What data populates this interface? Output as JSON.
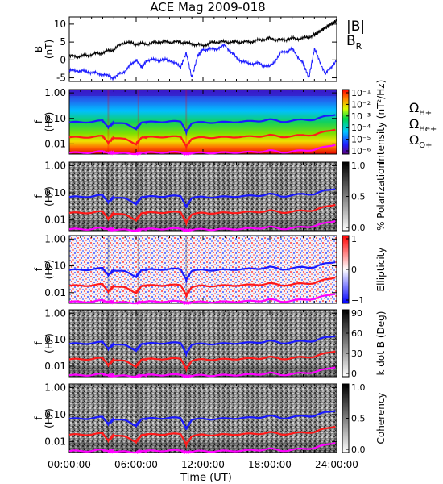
{
  "title": "ACE Mag 2009-018",
  "xaxis": {
    "label": "Time (UT)",
    "ticks": [
      "00:00:00",
      "06:00:00",
      "12:00:00",
      "18:00:00",
      "24:00:00"
    ],
    "range_hours": [
      0,
      24
    ]
  },
  "colors": {
    "B_total": "#000000",
    "B_R": "#1a1aff",
    "omega_H": "#1a1aff",
    "omega_He": "#ff1a1a",
    "omega_O": "#ff00ff"
  },
  "chart_data": [
    {
      "type": "line",
      "ylabel": "B (nT)",
      "ylim": [
        -6,
        12
      ],
      "yticks": [
        -5,
        0,
        5,
        10
      ],
      "legend": [
        {
          "text": "|B|",
          "color": "#000000"
        },
        {
          "text": "B",
          "sub": "R",
          "color": "#1a1aff"
        }
      ],
      "series": [
        {
          "name": "|B|",
          "x": [
            0,
            1,
            2,
            3,
            4,
            5,
            6,
            7,
            8,
            9,
            10,
            11,
            12,
            13,
            14,
            15,
            16,
            17,
            18,
            19,
            20,
            21,
            22,
            22.5,
            23,
            23.5,
            24
          ],
          "y": [
            1,
            1,
            1.5,
            2,
            3,
            5,
            4.5,
            4.5,
            5,
            5,
            5,
            4.5,
            4,
            5,
            5,
            5,
            5,
            5.5,
            6,
            5.5,
            6,
            6,
            7,
            8,
            9,
            10,
            11
          ]
        },
        {
          "name": "B_R",
          "x": [
            0,
            1,
            2,
            3,
            4,
            5,
            6,
            6.5,
            7,
            8,
            9,
            10,
            10.5,
            11,
            11.5,
            12,
            13,
            14,
            15,
            16,
            17,
            18,
            19,
            20,
            21,
            21.5,
            22,
            23,
            24
          ],
          "y": [
            -3,
            -3,
            -3.5,
            -4,
            -5,
            -3,
            0,
            -2,
            0,
            0,
            0,
            -2,
            2,
            -5,
            1,
            3,
            3,
            4,
            0.5,
            -1,
            -1,
            -2,
            2,
            3,
            -1,
            -5,
            3,
            -4,
            0
          ]
        }
      ]
    },
    {
      "type": "heatmap",
      "ylabel": "f (Hz)",
      "yticks": [
        "1.00",
        "0.10",
        "0.01"
      ],
      "colorbar": {
        "label": "Intensity (nT²/Hz)",
        "ticks": [
          "10⁻¹",
          "10⁻²",
          "10⁻³",
          "10⁻⁴",
          "10⁻⁵",
          "10⁻⁶"
        ],
        "scale": "rainbow"
      },
      "overlay_legend": [
        {
          "text": "Ω",
          "sub": "H+",
          "color": "#1a1aff"
        },
        {
          "text": "Ω",
          "sub": "He+",
          "color": "#ff1a1a"
        },
        {
          "text": "Ω",
          "sub": "O+",
          "color": "#ff00ff"
        }
      ]
    },
    {
      "type": "heatmap",
      "ylabel": "f (Hz)",
      "yticks": [
        "1.00",
        "0.10",
        "0.01"
      ],
      "colorbar": {
        "label": "% Polarization",
        "ticks": [
          "1.0",
          "0.5",
          "0.0"
        ],
        "range": [
          0,
          1
        ],
        "scale": "gray"
      }
    },
    {
      "type": "heatmap",
      "ylabel": "f (Hz)",
      "yticks": [
        "1.00",
        "0.10",
        "0.01"
      ],
      "colorbar": {
        "label": "Ellipticity",
        "ticks": [
          "1",
          "0",
          "−1"
        ],
        "range": [
          -1,
          1
        ],
        "scale": "bwr"
      }
    },
    {
      "type": "heatmap",
      "ylabel": "f (Hz)",
      "yticks": [
        "1.00",
        "0.10",
        "0.01"
      ],
      "colorbar": {
        "label": "k dot B (Deg)",
        "ticks": [
          "90",
          "60",
          "30",
          "0"
        ],
        "range": [
          0,
          90
        ],
        "scale": "gray"
      }
    },
    {
      "type": "heatmap",
      "ylabel": "f (Hz)",
      "yticks": [
        "1.00",
        "0.10",
        "0.01"
      ],
      "colorbar": {
        "label": "Coherency",
        "ticks": [
          "1.0",
          "0.5",
          "0.0"
        ],
        "range": [
          0,
          1
        ],
        "scale": "gray"
      }
    }
  ],
  "gyrofrequency_lines": {
    "x_hours": [
      0,
      1,
      2,
      3,
      3.5,
      4,
      5,
      6,
      6.5,
      7,
      8,
      9,
      10,
      10.5,
      11,
      12,
      13,
      14,
      15,
      16,
      17,
      18,
      19,
      20,
      21,
      22,
      23,
      24
    ],
    "omega_H_hz": [
      0.07,
      0.07,
      0.075,
      0.08,
      0.045,
      0.07,
      0.06,
      0.04,
      0.07,
      0.07,
      0.075,
      0.075,
      0.075,
      0.03,
      0.065,
      0.07,
      0.07,
      0.07,
      0.075,
      0.075,
      0.08,
      0.09,
      0.075,
      0.08,
      0.09,
      0.09,
      0.12,
      0.15
    ],
    "omega_He_hz": [
      0.018,
      0.018,
      0.019,
      0.02,
      0.011,
      0.018,
      0.015,
      0.01,
      0.018,
      0.018,
      0.019,
      0.019,
      0.019,
      0.008,
      0.016,
      0.018,
      0.018,
      0.018,
      0.019,
      0.019,
      0.02,
      0.022,
      0.019,
      0.02,
      0.022,
      0.023,
      0.03,
      0.04
    ],
    "omega_O_hz": [
      0.0045,
      0.0045,
      0.0047,
      0.005,
      0.0045,
      0.0045,
      0.0042,
      0.004,
      0.0045,
      0.0045,
      0.0047,
      0.0047,
      0.0047,
      0.004,
      0.0043,
      0.0045,
      0.0045,
      0.0045,
      0.0047,
      0.0047,
      0.005,
      0.0055,
      0.0047,
      0.005,
      0.0055,
      0.006,
      0.0075,
      0.01
    ]
  }
}
